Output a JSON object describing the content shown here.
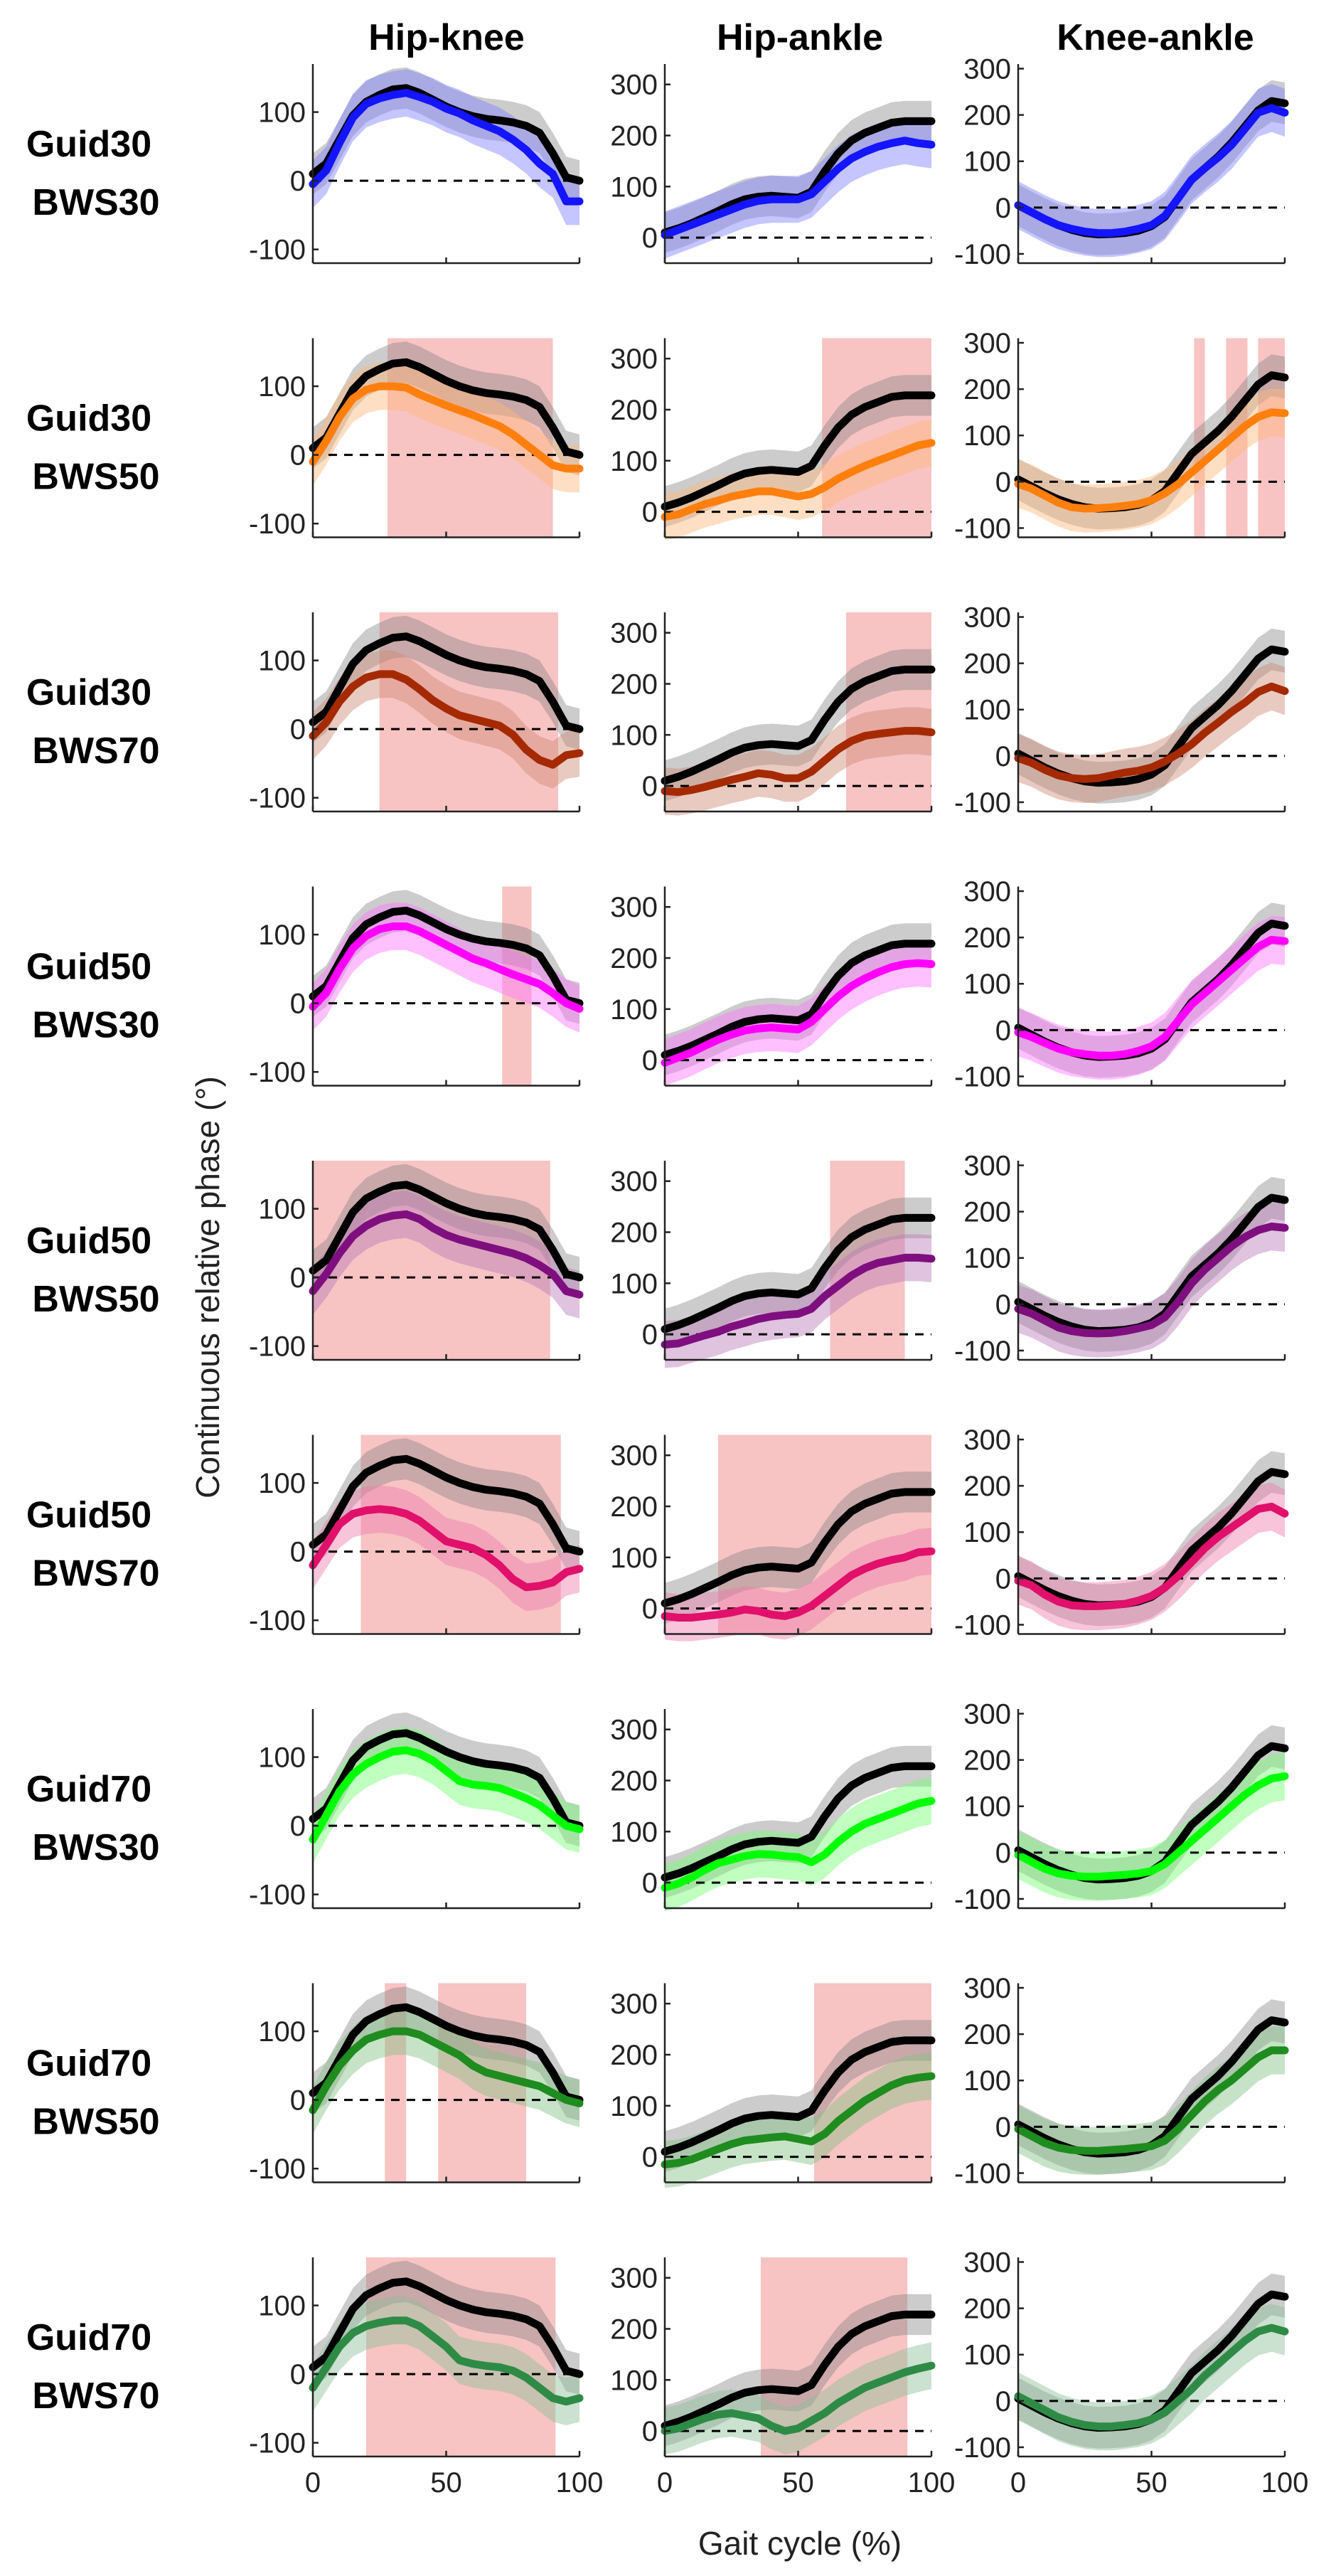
{
  "figure": {
    "column_titles": [
      "Hip-knee",
      "Hip-ankle",
      "Knee-ankle"
    ],
    "y_axis_label": "Continuous relative phase (°)",
    "x_axis_label": "Gait cycle (%)",
    "x_tick_labels": [
      "0",
      "50",
      "100"
    ],
    "reference_color": "#000000",
    "significance_color": "#f7b9b9"
  },
  "chart_data": {
    "type": "line",
    "title": "",
    "xlabel": "Gait cycle (%)",
    "ylabel": "Continuous relative phase (°)",
    "grid": false,
    "columns": [
      {
        "name": "Hip-knee",
        "ylim": [
          -120,
          170
        ],
        "yticks": [
          -100,
          0,
          100
        ]
      },
      {
        "name": "Hip-ankle",
        "ylim": [
          -50,
          340
        ],
        "yticks": [
          0,
          100,
          200,
          300
        ]
      },
      {
        "name": "Knee-ankle",
        "ylim": [
          -120,
          310
        ],
        "yticks": [
          -100,
          0,
          100,
          200,
          300
        ]
      }
    ],
    "x": [
      0,
      5,
      10,
      15,
      20,
      25,
      30,
      35,
      40,
      45,
      50,
      55,
      60,
      65,
      70,
      75,
      80,
      85,
      90,
      95,
      100
    ],
    "reference": {
      "name": "Black (reference)",
      "color": "#000000",
      "series": [
        [
          10,
          25,
          60,
          95,
          115,
          125,
          133,
          135,
          128,
          118,
          108,
          100,
          94,
          90,
          88,
          85,
          80,
          70,
          40,
          5,
          0
        ],
        [
          10,
          18,
          28,
          40,
          52,
          65,
          75,
          80,
          82,
          80,
          78,
          90,
          130,
          165,
          190,
          205,
          215,
          225,
          228,
          228,
          228
        ],
        [
          5,
          -10,
          -25,
          -38,
          -48,
          -55,
          -58,
          -57,
          -55,
          -50,
          -40,
          -20,
          20,
          60,
          85,
          110,
          140,
          175,
          210,
          230,
          225
        ]
      ]
    },
    "panels": [
      {
        "label": "Guid30",
        "sublabel": "BWS30",
        "color": "#1414ff",
        "series": [
          [
            -5,
            15,
            55,
            92,
            112,
            120,
            125,
            128,
            122,
            115,
            105,
            98,
            88,
            80,
            72,
            60,
            45,
            25,
            10,
            -30,
            -30
          ],
          [
            5,
            15,
            25,
            35,
            45,
            55,
            65,
            72,
            75,
            75,
            75,
            85,
            110,
            135,
            155,
            168,
            178,
            185,
            190,
            185,
            182
          ],
          [
            5,
            -10,
            -25,
            -38,
            -46,
            -52,
            -55,
            -55,
            -52,
            -46,
            -38,
            -18,
            20,
            60,
            85,
            108,
            135,
            170,
            205,
            215,
            205
          ]
        ],
        "sig": [
          [],
          [],
          []
        ]
      },
      {
        "label": "Guid30",
        "sublabel": "BWS50",
        "color": "#ff7f0e",
        "series": [
          [
            -10,
            20,
            55,
            82,
            95,
            100,
            100,
            98,
            88,
            80,
            72,
            65,
            58,
            50,
            42,
            30,
            15,
            0,
            -15,
            -20,
            -20
          ],
          [
            -10,
            -5,
            5,
            15,
            22,
            30,
            35,
            40,
            40,
            35,
            30,
            35,
            48,
            65,
            78,
            90,
            100,
            110,
            120,
            130,
            135
          ],
          [
            -5,
            -15,
            -30,
            -45,
            -55,
            -58,
            -57,
            -55,
            -52,
            -48,
            -40,
            -25,
            -5,
            20,
            45,
            70,
            95,
            120,
            140,
            150,
            148
          ]
        ],
        "sig": [
          [
            [
              28,
              90
            ]
          ],
          [
            [
              59,
              100
            ]
          ],
          [
            [
              66,
              70
            ],
            [
              78,
              86
            ],
            [
              90,
              100
            ]
          ]
        ]
      },
      {
        "label": "Guid30",
        "sublabel": "BWS70",
        "color": "#a52a00",
        "series": [
          [
            -10,
            10,
            40,
            62,
            75,
            80,
            80,
            72,
            58,
            42,
            30,
            20,
            15,
            10,
            5,
            -8,
            -30,
            -45,
            -52,
            -38,
            -35
          ],
          [
            -10,
            -12,
            -8,
            -2,
            5,
            12,
            18,
            25,
            22,
            15,
            15,
            28,
            50,
            72,
            88,
            98,
            102,
            105,
            108,
            108,
            105
          ],
          [
            -5,
            -15,
            -30,
            -42,
            -48,
            -50,
            -48,
            -42,
            -36,
            -32,
            -25,
            -12,
            5,
            25,
            50,
            72,
            95,
            115,
            138,
            150,
            140
          ]
        ],
        "sig": [
          [
            [
              25,
              92
            ]
          ],
          [
            [
              68,
              100
            ]
          ],
          []
        ]
      },
      {
        "label": "Guid50",
        "sublabel": "BWS30",
        "color": "#ff00ff",
        "series": [
          [
            -5,
            15,
            50,
            80,
            98,
            108,
            112,
            112,
            105,
            95,
            85,
            75,
            65,
            58,
            50,
            42,
            35,
            28,
            15,
            0,
            -8
          ],
          [
            -5,
            5,
            15,
            28,
            40,
            50,
            58,
            62,
            64,
            62,
            60,
            75,
            100,
            125,
            145,
            160,
            172,
            182,
            188,
            190,
            188
          ],
          [
            -5,
            -15,
            -28,
            -40,
            -48,
            -52,
            -55,
            -55,
            -52,
            -45,
            -35,
            -15,
            20,
            55,
            80,
            105,
            130,
            155,
            180,
            195,
            192
          ]
        ],
        "sig": [
          [
            [
              71,
              82
            ]
          ],
          [],
          []
        ]
      },
      {
        "label": "Guid50",
        "sublabel": "BWS50",
        "color": "#7f0f7f",
        "series": [
          [
            -20,
            5,
            35,
            60,
            75,
            85,
            90,
            92,
            85,
            72,
            62,
            55,
            50,
            45,
            40,
            35,
            28,
            18,
            5,
            -20,
            -25
          ],
          [
            -20,
            -18,
            -10,
            -2,
            5,
            15,
            22,
            30,
            35,
            38,
            40,
            50,
            75,
            95,
            115,
            130,
            140,
            145,
            150,
            150,
            148
          ],
          [
            -10,
            -20,
            -35,
            -50,
            -58,
            -62,
            -63,
            -62,
            -58,
            -52,
            -45,
            -28,
            5,
            45,
            75,
            100,
            125,
            145,
            160,
            168,
            165
          ]
        ],
        "sig": [
          [
            [
              0,
              89
            ]
          ],
          [
            [
              62,
              90
            ]
          ],
          []
        ]
      },
      {
        "label": "Guid50",
        "sublabel": "BWS70",
        "color": "#e0106b",
        "series": [
          [
            -20,
            10,
            40,
            55,
            60,
            62,
            60,
            55,
            45,
            30,
            15,
            10,
            5,
            -5,
            -20,
            -40,
            -52,
            -50,
            -45,
            -30,
            -25
          ],
          [
            -15,
            -18,
            -18,
            -15,
            -12,
            -8,
            -2,
            -5,
            -12,
            -15,
            -8,
            5,
            25,
            45,
            65,
            78,
            88,
            95,
            100,
            110,
            112
          ],
          [
            -5,
            -15,
            -35,
            -50,
            -58,
            -60,
            -60,
            -58,
            -55,
            -48,
            -38,
            -20,
            5,
            35,
            65,
            90,
            110,
            130,
            150,
            155,
            140
          ]
        ],
        "sig": [
          [
            [
              18,
              93
            ]
          ],
          [
            [
              20,
              100
            ]
          ],
          []
        ]
      },
      {
        "label": "Guid70",
        "sublabel": "BWS30",
        "color": "#00ff00",
        "series": [
          [
            -20,
            15,
            50,
            75,
            90,
            100,
            108,
            110,
            105,
            95,
            80,
            65,
            60,
            58,
            55,
            48,
            40,
            30,
            15,
            0,
            -5
          ],
          [
            -10,
            -2,
            10,
            25,
            38,
            45,
            52,
            56,
            55,
            52,
            50,
            40,
            55,
            80,
            100,
            115,
            125,
            135,
            145,
            155,
            160
          ],
          [
            -5,
            -20,
            -35,
            -45,
            -50,
            -52,
            -52,
            -50,
            -48,
            -45,
            -40,
            -25,
            0,
            25,
            50,
            75,
            100,
            125,
            145,
            160,
            165
          ]
        ],
        "sig": [
          [],
          [],
          []
        ]
      },
      {
        "label": "Guid70",
        "sublabel": "BWS50",
        "color": "#1e8c1e",
        "series": [
          [
            -15,
            20,
            50,
            72,
            88,
            95,
            100,
            100,
            95,
            85,
            75,
            65,
            50,
            40,
            35,
            30,
            25,
            20,
            10,
            0,
            -5
          ],
          [
            -15,
            -12,
            -5,
            5,
            15,
            25,
            32,
            35,
            38,
            40,
            35,
            30,
            45,
            70,
            90,
            110,
            125,
            140,
            150,
            155,
            158
          ],
          [
            -5,
            -20,
            -35,
            -45,
            -50,
            -52,
            -52,
            -50,
            -48,
            -45,
            -42,
            -30,
            -5,
            25,
            55,
            80,
            100,
            125,
            150,
            165,
            165
          ]
        ],
        "sig": [
          [
            [
              27,
              35
            ],
            [
              47,
              80
            ]
          ],
          [
            [
              56,
              100
            ]
          ],
          []
        ]
      },
      {
        "label": "Guid70",
        "sublabel": "BWS70",
        "color": "#2e8b46",
        "series": [
          [
            -20,
            10,
            40,
            60,
            70,
            75,
            78,
            78,
            70,
            55,
            40,
            20,
            15,
            12,
            10,
            5,
            -5,
            -20,
            -35,
            -40,
            -35
          ],
          [
            0,
            5,
            15,
            25,
            32,
            35,
            30,
            25,
            10,
            0,
            5,
            20,
            35,
            55,
            70,
            85,
            95,
            105,
            115,
            122,
            128
          ],
          [
            10,
            -5,
            -20,
            -35,
            -45,
            -52,
            -55,
            -55,
            -52,
            -48,
            -40,
            -25,
            0,
            25,
            55,
            80,
            105,
            130,
            150,
            158,
            150
          ]
        ],
        "sig": [
          [
            [
              20,
              91
            ]
          ],
          [
            [
              36,
              91
            ]
          ],
          []
        ]
      }
    ]
  }
}
